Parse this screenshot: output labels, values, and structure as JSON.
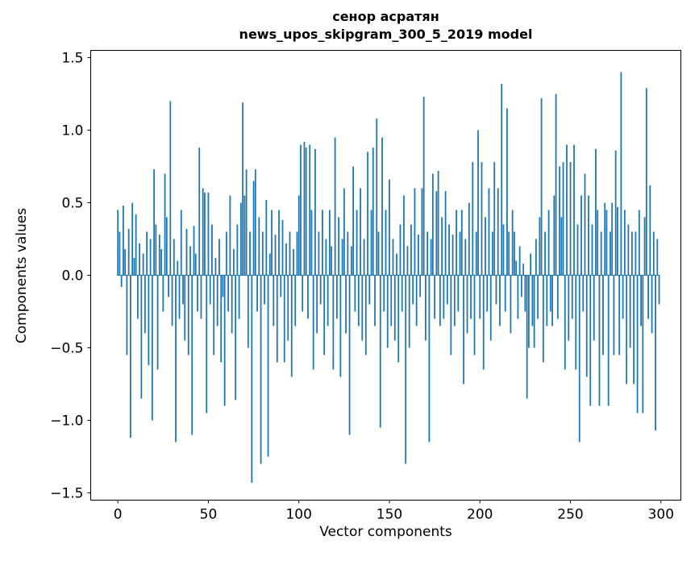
{
  "figure": {
    "title_line1": "сенор асратян",
    "title_line2": "news_upos_skipgram_300_5_2019 model",
    "xlabel": "Vector components",
    "ylabel": "Components values"
  },
  "chart_data": {
    "type": "bar",
    "title": "сенор асратян\nnews_upos_skipgram_300_5_2019 model",
    "xlabel": "Vector components",
    "ylabel": "Components values",
    "bar_color": "#1f77b4",
    "grid": false,
    "legend": null,
    "xlim": [
      -15,
      311
    ],
    "ylim": [
      -1.55,
      1.55
    ],
    "xticks": [
      0,
      50,
      100,
      150,
      200,
      250,
      300
    ],
    "yticks": [
      -1.5,
      -1.0,
      -0.5,
      0.0,
      0.5,
      1.0,
      1.5
    ],
    "ytick_labels": [
      "−1.5",
      "−1.0",
      "−0.5",
      "0.0",
      "0.5",
      "1.0",
      "1.5"
    ],
    "x_start": 0,
    "values": [
      0.45,
      0.3,
      -0.08,
      0.48,
      0.18,
      -0.55,
      0.32,
      -1.12,
      0.5,
      0.12,
      0.42,
      -0.3,
      0.22,
      -0.85,
      0.15,
      -0.4,
      0.3,
      -0.62,
      0.25,
      -1.0,
      0.73,
      0.35,
      -0.65,
      0.28,
      0.18,
      -0.25,
      0.7,
      0.4,
      -0.15,
      1.2,
      -0.35,
      0.25,
      -1.15,
      0.1,
      -0.3,
      0.45,
      -0.2,
      -0.45,
      0.32,
      -0.55,
      0.2,
      -1.1,
      0.34,
      0.15,
      -0.25,
      0.88,
      -0.3,
      0.6,
      0.57,
      -0.95,
      0.57,
      -0.2,
      0.35,
      -0.55,
      0.12,
      -0.35,
      0.25,
      -0.6,
      -0.15,
      -0.9,
      0.3,
      -0.25,
      0.55,
      -0.4,
      0.18,
      -0.86,
      0.35,
      -0.3,
      0.5,
      1.19,
      0.55,
      0.73,
      -0.5,
      0.3,
      -1.43,
      0.65,
      0.73,
      -0.25,
      0.4,
      -1.3,
      0.3,
      -0.2,
      0.52,
      -1.25,
      0.15,
      0.45,
      -0.35,
      0.28,
      -0.6,
      0.45,
      -0.15,
      0.38,
      -0.6,
      0.22,
      -0.45,
      0.3,
      -0.7,
      0.18,
      -0.35,
      0.3,
      0.55,
      0.9,
      -0.25,
      0.92,
      0.88,
      -0.3,
      0.9,
      0.45,
      -0.65,
      0.87,
      -0.4,
      0.3,
      -0.2,
      0.45,
      -0.55,
      0.25,
      -0.35,
      0.45,
      0.2,
      -0.65,
      0.95,
      -0.3,
      0.4,
      -0.7,
      0.25,
      0.6,
      -0.4,
      0.3,
      -1.1,
      0.2,
      0.75,
      -0.25,
      0.45,
      -0.35,
      0.6,
      -0.45,
      0.25,
      -0.55,
      0.85,
      -0.2,
      0.45,
      0.88,
      -0.35,
      1.08,
      0.3,
      -1.05,
      0.95,
      -0.25,
      0.45,
      -0.5,
      0.66,
      -0.35,
      0.25,
      -0.45,
      0.15,
      -0.6,
      0.35,
      -0.25,
      0.55,
      -1.3,
      0.2,
      -0.5,
      0.35,
      -0.2,
      0.6,
      -0.35,
      0.28,
      -0.15,
      0.6,
      1.23,
      -0.45,
      0.3,
      -1.15,
      0.25,
      0.7,
      -0.3,
      0.58,
      0.72,
      -0.35,
      0.4,
      -0.3,
      0.58,
      -0.2,
      0.35,
      -0.55,
      0.28,
      -0.35,
      0.45,
      -0.25,
      0.3,
      0.45,
      -0.75,
      0.25,
      -0.4,
      0.5,
      -0.3,
      0.78,
      -0.55,
      0.3,
      1.0,
      -0.3,
      0.78,
      -0.65,
      0.4,
      -0.25,
      0.6,
      -0.45,
      0.3,
      0.78,
      -0.2,
      0.6,
      -0.35,
      1.32,
      0.35,
      -0.25,
      1.15,
      0.3,
      -0.4,
      0.45,
      0.3,
      0.1,
      -0.3,
      0.2,
      -0.15,
      0.08,
      -0.25,
      -0.85,
      -0.5,
      0.15,
      -0.35,
      -0.5,
      0.25,
      -0.3,
      0.4,
      1.22,
      -0.6,
      0.3,
      -0.35,
      0.45,
      -0.25,
      -0.35,
      0.55,
      1.25,
      -0.3,
      0.75,
      0.4,
      0.78,
      -0.65,
      0.9,
      -0.45,
      0.78,
      -0.3,
      0.9,
      -0.65,
      0.35,
      -1.15,
      0.55,
      -0.25,
      0.7,
      -0.7,
      0.55,
      -0.9,
      0.35,
      -0.45,
      0.87,
      0.45,
      -0.9,
      0.3,
      -0.55,
      0.5,
      0.45,
      -0.9,
      0.3,
      0.5,
      -0.55,
      0.86,
      0.47,
      -0.55,
      1.4,
      -0.3,
      0.45,
      -0.75,
      0.35,
      -0.5,
      0.3,
      -0.75,
      0.3,
      -0.95,
      0.45,
      -0.35,
      -0.95,
      0.4,
      1.29,
      -0.3,
      0.62,
      -0.4,
      0.3,
      -1.07,
      0.25,
      -0.2
    ]
  }
}
